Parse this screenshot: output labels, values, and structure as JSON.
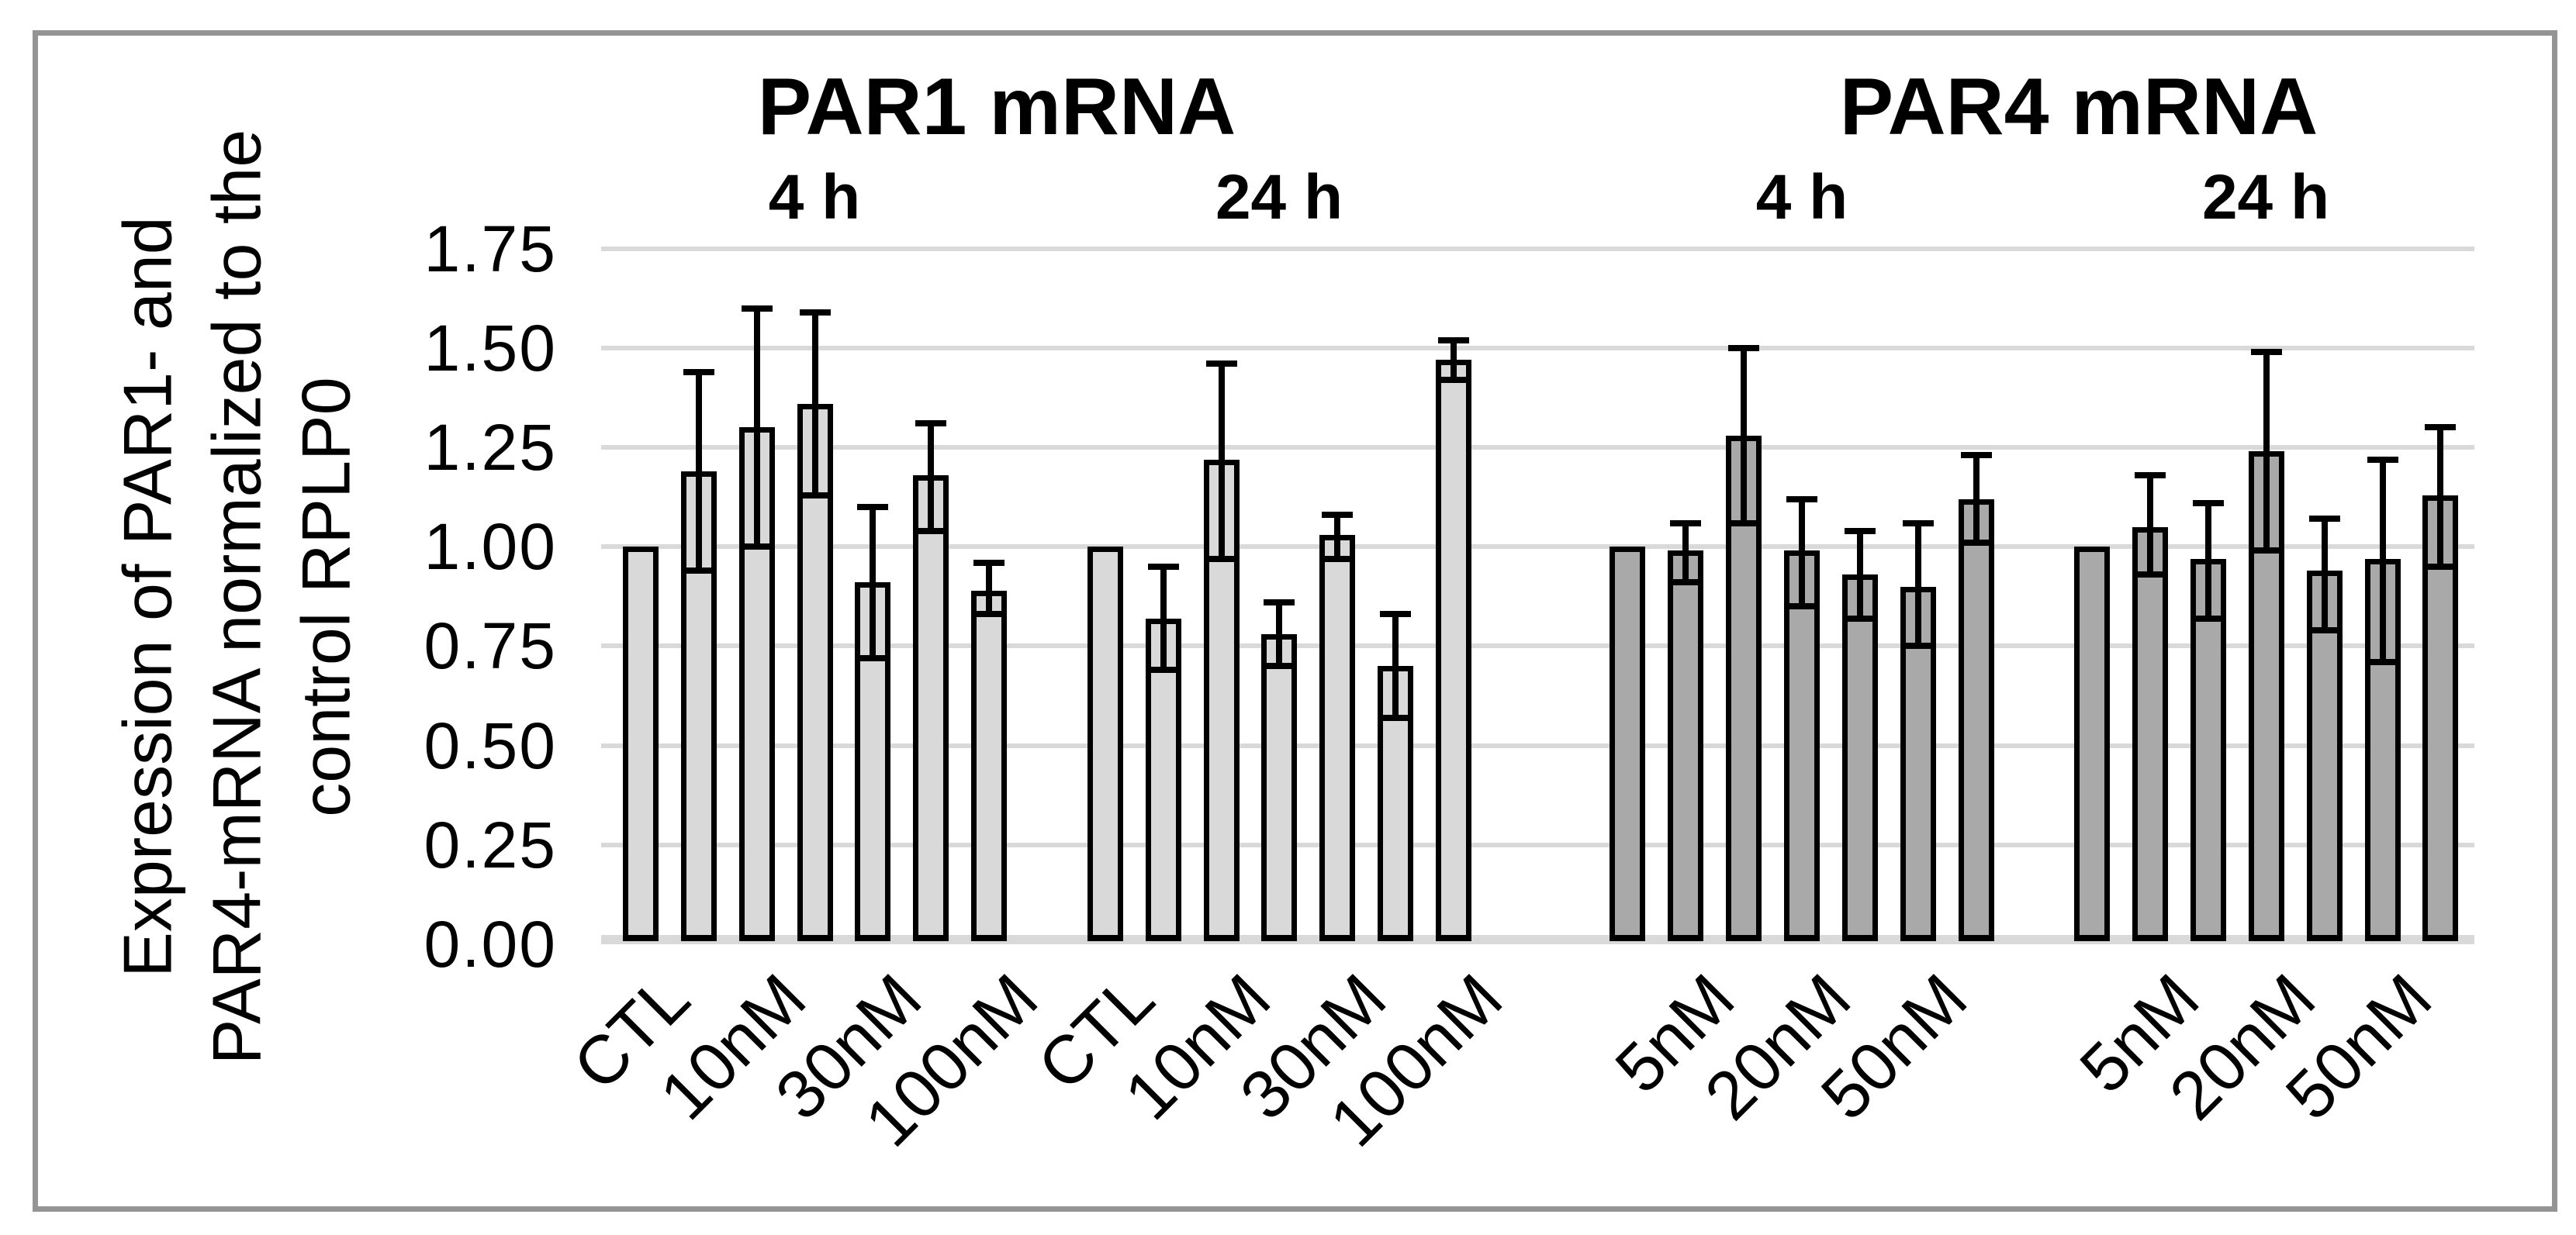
{
  "figure": {
    "background": "#ffffff",
    "border_color": "#949494"
  },
  "chart_data": {
    "type": "bar",
    "ylabel_lines": [
      "Expression of PAR1- and",
      "PAR4-mRNA normalized to the",
      "control RPLP0"
    ],
    "ylim": [
      0,
      1.75
    ],
    "grid": true,
    "legend_position": "none",
    "yticks": [
      0,
      0.25,
      0.5,
      0.75,
      1.0,
      1.25,
      1.5,
      1.75
    ],
    "ytick_labels": [
      "0.00",
      "0.25",
      "0.50",
      "0.75",
      "1.00",
      "1.25",
      "1.50",
      "1.75"
    ],
    "bar_colors": {
      "PAR1": "#d9d9d9",
      "PAR4": "#a9a9a9"
    },
    "error_bar_color": "#000000",
    "sections": [
      {
        "title": "PAR1 mRNA",
        "style": "light",
        "groups": [
          {
            "subtitle": "4 h",
            "start_slot": 0,
            "bars": [
              {
                "label": "CTL",
                "value": 1.0,
                "err_lo": null,
                "err_hi": null
              },
              {
                "label": null,
                "value": 1.19,
                "err_lo": 0.94,
                "err_hi": 1.44
              },
              {
                "label": "10nM",
                "value": 1.3,
                "err_lo": 1.0,
                "err_hi": 1.6
              },
              {
                "label": null,
                "value": 1.36,
                "err_lo": 1.13,
                "err_hi": 1.59
              },
              {
                "label": "30nM",
                "value": 0.91,
                "err_lo": 0.72,
                "err_hi": 1.1
              },
              {
                "label": null,
                "value": 1.18,
                "err_lo": 1.04,
                "err_hi": 1.31
              },
              {
                "label": "100nM",
                "value": 0.89,
                "err_lo": 0.83,
                "err_hi": 0.96
              }
            ]
          },
          {
            "subtitle": "24 h",
            "start_slot": 8,
            "bars": [
              {
                "label": "CTL",
                "value": 1.0,
                "err_lo": null,
                "err_hi": null
              },
              {
                "label": null,
                "value": 0.82,
                "err_lo": 0.69,
                "err_hi": 0.95
              },
              {
                "label": "10nM",
                "value": 1.22,
                "err_lo": 0.97,
                "err_hi": 1.46
              },
              {
                "label": null,
                "value": 0.78,
                "err_lo": 0.7,
                "err_hi": 0.86
              },
              {
                "label": "30nM",
                "value": 1.03,
                "err_lo": 0.97,
                "err_hi": 1.08
              },
              {
                "label": null,
                "value": 0.7,
                "err_lo": 0.57,
                "err_hi": 0.83
              },
              {
                "label": "100nM",
                "value": 1.47,
                "err_lo": 1.42,
                "err_hi": 1.52
              }
            ]
          }
        ]
      },
      {
        "title": "PAR4 mRNA",
        "style": "dark",
        "groups": [
          {
            "subtitle": "4 h",
            "start_slot": 17,
            "bars": [
              {
                "label": null,
                "value": 1.0,
                "err_lo": null,
                "err_hi": null
              },
              {
                "label": "5nM",
                "value": 0.99,
                "err_lo": 0.91,
                "err_hi": 1.06
              },
              {
                "label": null,
                "value": 1.28,
                "err_lo": 1.06,
                "err_hi": 1.5
              },
              {
                "label": "20nM",
                "value": 0.99,
                "err_lo": 0.85,
                "err_hi": 1.12
              },
              {
                "label": null,
                "value": 0.93,
                "err_lo": 0.82,
                "err_hi": 1.04
              },
              {
                "label": "50nM",
                "value": 0.9,
                "err_lo": 0.75,
                "err_hi": 1.06
              },
              {
                "label": null,
                "value": 1.12,
                "err_lo": 1.01,
                "err_hi": 1.23
              }
            ]
          },
          {
            "subtitle": "24 h",
            "start_slot": 25,
            "bars": [
              {
                "label": null,
                "value": 1.0,
                "err_lo": null,
                "err_hi": null
              },
              {
                "label": "5nM",
                "value": 1.05,
                "err_lo": 0.93,
                "err_hi": 1.18
              },
              {
                "label": null,
                "value": 0.97,
                "err_lo": 0.82,
                "err_hi": 1.11
              },
              {
                "label": "20nM",
                "value": 1.24,
                "err_lo": 0.99,
                "err_hi": 1.49
              },
              {
                "label": null,
                "value": 0.94,
                "err_lo": 0.79,
                "err_hi": 1.07
              },
              {
                "label": "50nM",
                "value": 0.97,
                "err_lo": 0.71,
                "err_hi": 1.22
              },
              {
                "label": null,
                "value": 1.13,
                "err_lo": 0.95,
                "err_hi": 1.3
              }
            ]
          }
        ]
      }
    ]
  }
}
